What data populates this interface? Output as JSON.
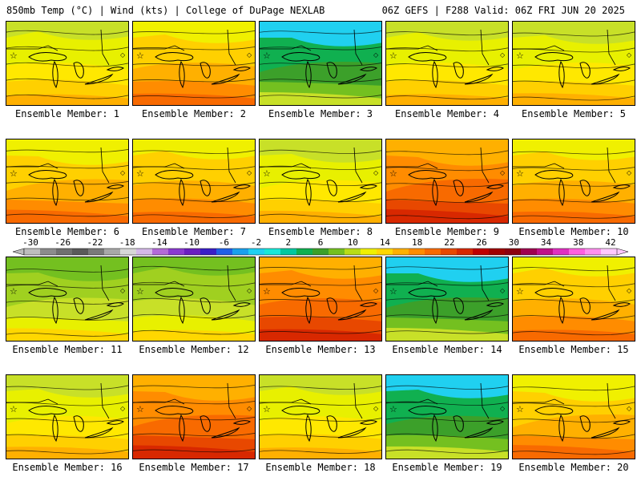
{
  "header": {
    "left": "850mb Temp (°C) | Wind (kts) | College of DuPage NEXLAB",
    "right": "06Z GEFS | F288 Valid: 06Z FRI JUN 20 2025"
  },
  "members": [
    {
      "label": "Ensemble Member: 1",
      "scheme": "warm"
    },
    {
      "label": "Ensemble Member: 2",
      "scheme": "hot"
    },
    {
      "label": "Ensemble Member: 3",
      "scheme": "cool"
    },
    {
      "label": "Ensemble Member: 4",
      "scheme": "warm"
    },
    {
      "label": "Ensemble Member: 5",
      "scheme": "warm"
    },
    {
      "label": "Ensemble Member: 6",
      "scheme": "hot"
    },
    {
      "label": "Ensemble Member: 7",
      "scheme": "hot"
    },
    {
      "label": "Ensemble Member: 8",
      "scheme": "warm"
    },
    {
      "label": "Ensemble Member: 9",
      "scheme": "hottest"
    },
    {
      "label": "Ensemble Member: 10",
      "scheme": "hot"
    },
    {
      "label": "Ensemble Member: 11",
      "scheme": "mild"
    },
    {
      "label": "Ensemble Member: 12",
      "scheme": "mild"
    },
    {
      "label": "Ensemble Member: 13",
      "scheme": "hottest"
    },
    {
      "label": "Ensemble Member: 14",
      "scheme": "cool"
    },
    {
      "label": "Ensemble Member: 15",
      "scheme": "hot"
    },
    {
      "label": "Ensemble Member: 16",
      "scheme": "warm"
    },
    {
      "label": "Ensemble Member: 17",
      "scheme": "hottest"
    },
    {
      "label": "Ensemble Member: 18",
      "scheme": "warm"
    },
    {
      "label": "Ensemble Member: 19",
      "scheme": "cool"
    },
    {
      "label": "Ensemble Member: 20",
      "scheme": "hot"
    }
  ],
  "colorbar": {
    "ticks": [
      "-30",
      "-26",
      "-22",
      "-18",
      "-14",
      "-10",
      "-6",
      "-2",
      "2",
      "6",
      "10",
      "14",
      "18",
      "22",
      "26",
      "30",
      "34",
      "38",
      "42"
    ],
    "colors": [
      "#bdbdbd",
      "#8c8c8c",
      "#707070",
      "#5a5a5a",
      "#7a7a7a",
      "#a8a8a8",
      "#d7d7d7",
      "#d4b8e8",
      "#b36ad8",
      "#8b3ad0",
      "#6b1fc0",
      "#3a1fc8",
      "#2060e8",
      "#1aa0ee",
      "#20d0f0",
      "#18e8d8",
      "#00c8a0",
      "#10b050",
      "#3ca02a",
      "#74c020",
      "#b8dc18",
      "#f0f000",
      "#ffd700",
      "#ffb000",
      "#ff8c00",
      "#f86a00",
      "#e84800",
      "#d82800",
      "#c00000",
      "#a00000",
      "#8c0010",
      "#a00050",
      "#c0108a",
      "#e030c0",
      "#ff60e0",
      "#ff90f0",
      "#ffc8ff"
    ]
  },
  "map_marks": {
    "star": "☆",
    "diamond": "◇"
  }
}
